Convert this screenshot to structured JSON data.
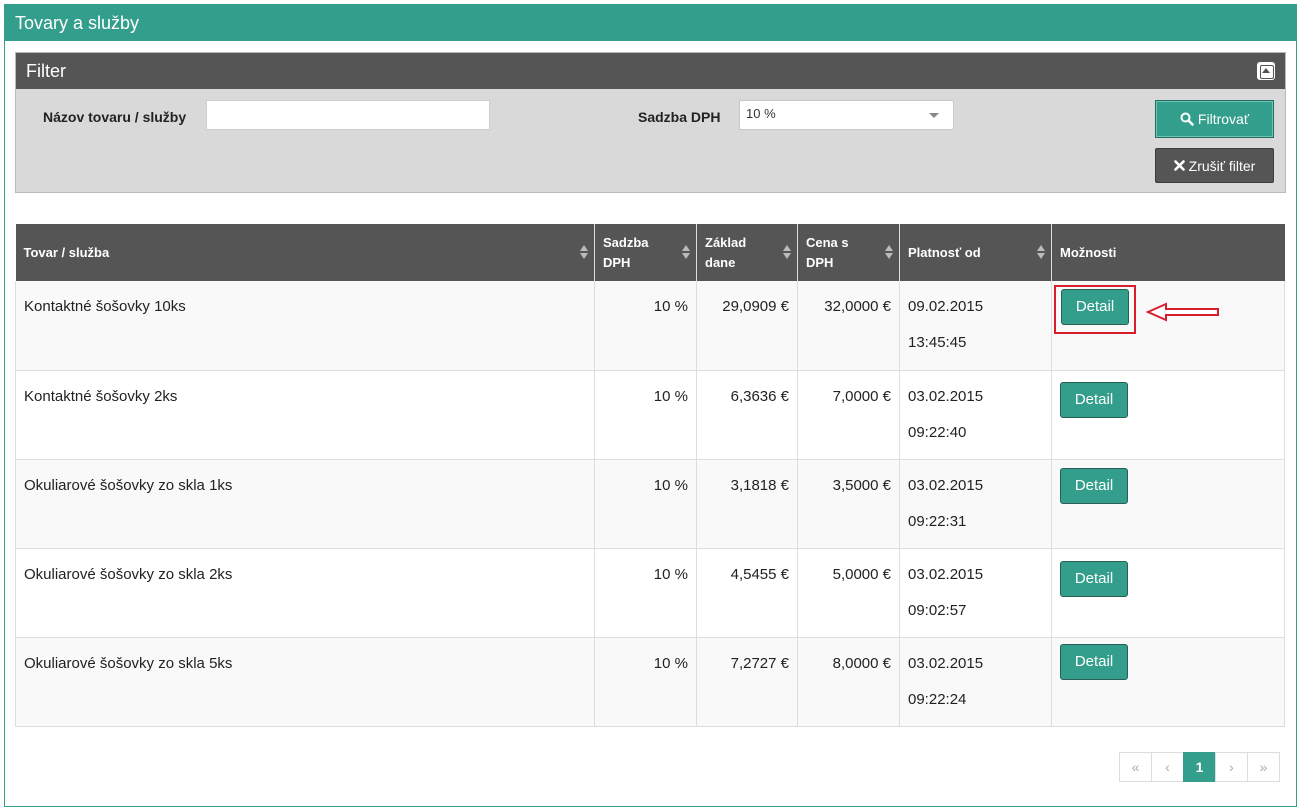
{
  "panel": {
    "title": "Tovary a služby"
  },
  "filter": {
    "title": "Filter",
    "name_label": "Názov tovaru / služby",
    "name_value": "",
    "vat_label": "Sadzba DPH",
    "vat_value": "10 %",
    "filter_button": "Filtrovať",
    "clear_button": "Zrušiť filter"
  },
  "table": {
    "headers": {
      "item": "Tovar / služba",
      "vat_1": "Sadzba",
      "vat_2": "DPH",
      "base_1": "Základ",
      "base_2": "dane",
      "price_1": "Cena s",
      "price_2": "DPH",
      "valid": "Platnosť od",
      "options": "Možnosti"
    },
    "rows": [
      {
        "name": "Kontaktné šošovky 10ks",
        "vat": "10 %",
        "base": "29,0909 €",
        "price": "32,0000 €",
        "date": "09.02.2015",
        "time": "13:45:45",
        "action": "Detail"
      },
      {
        "name": "Kontaktné šošovky 2ks",
        "vat": "10 %",
        "base": "6,3636 €",
        "price": "7,0000 €",
        "date": "03.02.2015",
        "time": "09:22:40",
        "action": "Detail"
      },
      {
        "name": "Okuliarové šošovky zo skla 1ks",
        "vat": "10 %",
        "base": "3,1818 €",
        "price": "3,5000 €",
        "date": "03.02.2015",
        "time": "09:22:31",
        "action": "Detail"
      },
      {
        "name": "Okuliarové šošovky zo skla 2ks",
        "vat": "10 %",
        "base": "4,5455 €",
        "price": "5,0000 €",
        "date": "03.02.2015",
        "time": "09:02:57",
        "action": "Detail"
      },
      {
        "name": "Okuliarové šošovky zo skla 5ks",
        "vat": "10 %",
        "base": "7,2727 €",
        "price": "8,0000 €",
        "date": "03.02.2015",
        "time": "09:22:24",
        "action": "Detail"
      }
    ]
  },
  "pagination": {
    "first": "«",
    "prev": "‹",
    "current": "1",
    "next": "›",
    "last": "»"
  },
  "colors": {
    "accent": "#339e8b",
    "dark": "#555555",
    "annotation": "#d81e2a"
  }
}
